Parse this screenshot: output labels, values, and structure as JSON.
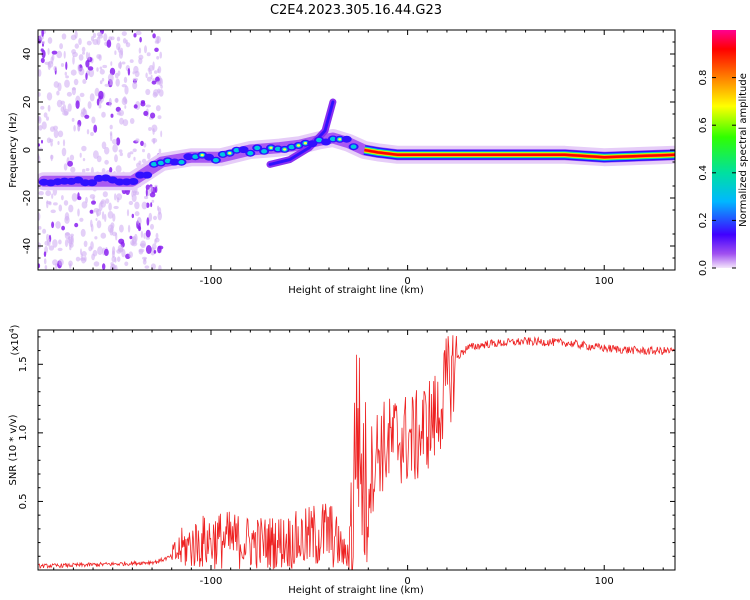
{
  "title": "C2E4.2023.305.16.44.G23",
  "chart_data": [
    {
      "type": "heatmap",
      "xlabel": "Height of straight line (km)",
      "ylabel": "Frequency (Hz)",
      "xlim": [
        -188,
        136
      ],
      "ylim": [
        -50,
        50
      ],
      "x_ticks": [
        -100,
        0,
        100
      ],
      "x_tick_labels": [
        "-100",
        "0",
        "100"
      ],
      "y_ticks": [
        -40,
        -20,
        0,
        20,
        40
      ],
      "y_tick_labels": [
        "-40",
        "-20",
        "0",
        "20",
        "40"
      ],
      "grid": false,
      "colorbar": {
        "label": "Normalized spectral amplitude",
        "range": [
          0,
          1
        ],
        "ticks": [
          0.0,
          0.2,
          0.4,
          0.6,
          0.8
        ],
        "tick_labels": [
          "0.0",
          "0.2",
          "0.4",
          "0.6",
          "0.8"
        ],
        "colors": [
          "#f0d8f8",
          "#a040f0",
          "#4000ff",
          "#00c0ff",
          "#00ff80",
          "#ffff00",
          "#ff8000",
          "#ff0000",
          "#ff0080"
        ]
      },
      "ridge": {
        "name": "",
        "x": [
          -185,
          -160,
          -140,
          -125,
          -110,
          -95,
          -80,
          -65,
          -55,
          -45,
          -38,
          -30,
          -22,
          -15,
          -5,
          5,
          20,
          50,
          80,
          100,
          136
        ],
        "y": [
          -13,
          -13,
          -13,
          -5,
          -3,
          -3,
          0,
          1,
          2,
          4,
          5,
          3,
          0,
          -1,
          -2,
          -2,
          -2,
          -2,
          -2,
          -3,
          -2
        ]
      },
      "branch": {
        "x": [
          -70,
          -60,
          -50,
          -42,
          -38
        ],
        "y": [
          -6,
          -4,
          1,
          8,
          20
        ]
      }
    },
    {
      "type": "line",
      "xlabel": "Height of straight line (km)",
      "ylabel": "SNR (10 * v/v)",
      "y_multiplier_label": "(x10",
      "y_multiplier_exponent": "4",
      "y_multiplier_suffix": ")",
      "xlim": [
        -188,
        136
      ],
      "ylim": [
        0,
        1.75
      ],
      "x_ticks": [
        -100,
        0,
        100
      ],
      "x_tick_labels": [
        "-100",
        "0",
        "100"
      ],
      "y_ticks": [
        0.5,
        1.0,
        1.5
      ],
      "y_tick_labels": [
        "0.5",
        "1.0",
        "1.5"
      ],
      "grid": false,
      "color": "#ee2222",
      "series": [
        {
          "name": "",
          "x": [
            -188,
            -160,
            -140,
            -128,
            -120,
            -115,
            -110,
            -100,
            -90,
            -80,
            -70,
            -60,
            -52,
            -46,
            -40,
            -35,
            -31,
            -28,
            -26,
            -24,
            -22,
            -20,
            -15,
            -10,
            -5,
            0,
            5,
            10,
            15,
            20,
            25,
            30,
            40,
            50,
            60,
            80,
            100,
            120,
            136
          ],
          "y": [
            0.03,
            0.04,
            0.05,
            0.06,
            0.1,
            0.17,
            0.2,
            0.24,
            0.24,
            0.22,
            0.22,
            0.23,
            0.25,
            0.28,
            0.3,
            0.2,
            0.1,
            0.35,
            1.25,
            0.9,
            0.65,
            0.7,
            0.92,
            0.95,
            1.0,
            0.98,
            1.0,
            1.1,
            1.15,
            1.4,
            1.55,
            1.62,
            1.65,
            1.66,
            1.67,
            1.66,
            1.62,
            1.6,
            1.6
          ]
        }
      ]
    }
  ]
}
